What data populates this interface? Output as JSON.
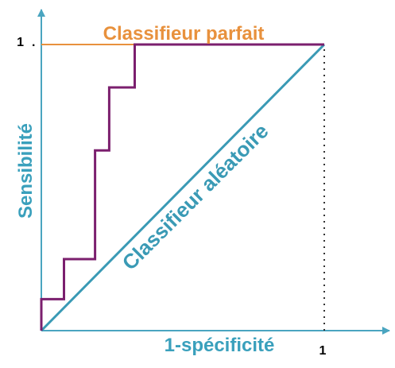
{
  "chart_data": {
    "type": "line",
    "title": "",
    "xlabel": "1-spécificité",
    "ylabel": "Sensibilité",
    "xlim": [
      0,
      1
    ],
    "ylim": [
      0,
      1
    ],
    "x_tick_labels": [
      "1"
    ],
    "y_tick_labels": [
      "1"
    ],
    "series": [
      {
        "name": "Classifieur parfait",
        "color": "#e8913d",
        "points": [
          [
            0,
            1
          ],
          [
            1,
            1
          ]
        ]
      },
      {
        "name": "Classifieur aléatoire",
        "color": "#3a9ab5",
        "points": [
          [
            0,
            0
          ],
          [
            1,
            1
          ]
        ]
      },
      {
        "name": "",
        "color": "#7b1f6e",
        "points": [
          [
            0,
            0
          ],
          [
            0,
            0.11
          ],
          [
            0.08,
            0.11
          ],
          [
            0.08,
            0.25
          ],
          [
            0.19,
            0.25
          ],
          [
            0.19,
            0.63
          ],
          [
            0.24,
            0.63
          ],
          [
            0.24,
            0.85
          ],
          [
            0.33,
            0.85
          ],
          [
            0.33,
            1
          ],
          [
            1,
            1
          ]
        ]
      }
    ],
    "reference_line": {
      "x": 1,
      "style": "dotted"
    },
    "grid": false,
    "legend": "none"
  },
  "colors": {
    "axis": "#4aa5c0",
    "axis_label": "#3aa0bc",
    "tick_text": "#000000"
  }
}
